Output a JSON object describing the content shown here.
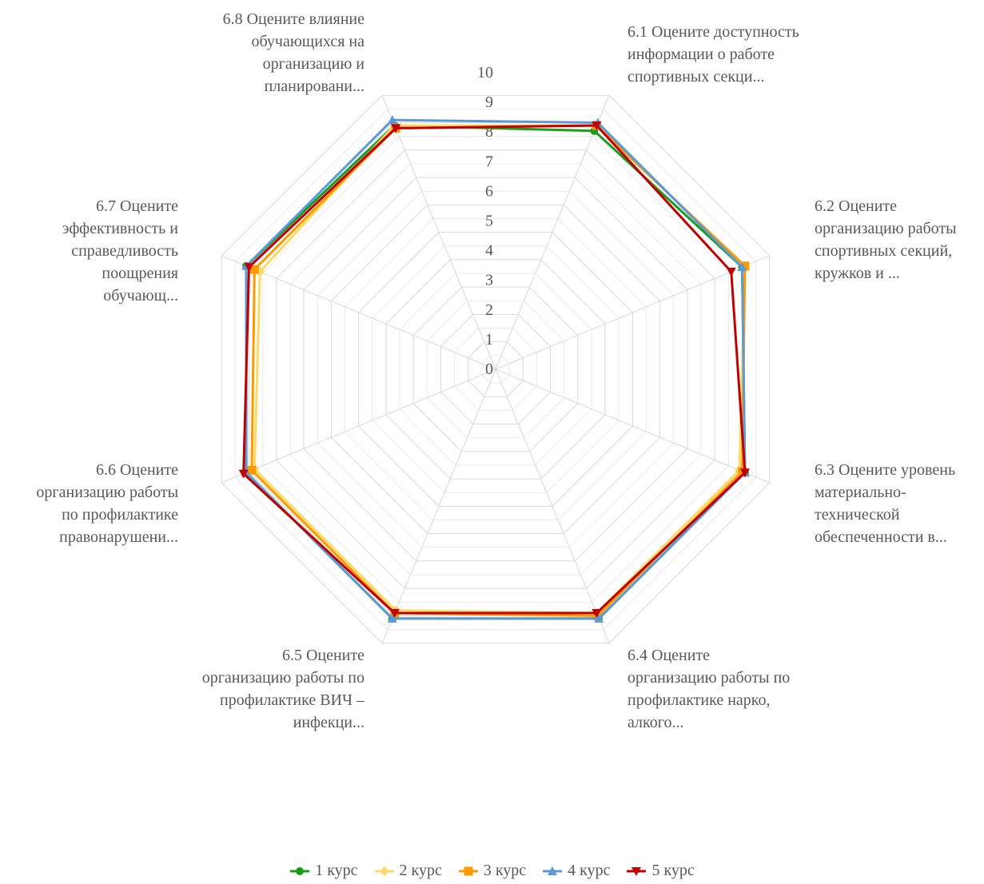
{
  "chart_data": {
    "type": "radar",
    "categories": [
      "6.1 Оцените доступность информации о работе спортивных секци...",
      "6.2 Оцените организацию работы спортивных секций, кружков и ...",
      "6.3 Оцените уровень материально-технической обеспеченности в...",
      "6.4 Оцените организацию работы по профилактике нарко, алкого...",
      "6.5 Оцените организацию работы по профилактике ВИЧ – инфекци...",
      "6.6 Оцените организацию работы по профилактике правонарушени...",
      "6.7 Оцените эффективность и справедливость поощрения обучающ...",
      "6.8 Оцените влияние обучающихся на организацию и планировани..."
    ],
    "category_lines": [
      [
        "6.1 Оцените доступность",
        "информации о работе",
        "спортивных секци..."
      ],
      [
        "6.2 Оцените",
        "организацию работы",
        "спортивных секций,",
        "кружков и ..."
      ],
      [
        "6.3 Оцените уровень",
        "материально-",
        "технической",
        "обеспеченности в..."
      ],
      [
        "6.4 Оцените",
        "организацию работы по",
        "профилактике нарко,",
        "алкого..."
      ],
      [
        "6.5 Оцените",
        "организацию работы по",
        "профилактике ВИЧ –",
        "инфекци..."
      ],
      [
        "6.6 Оцените",
        "организацию работы",
        "по профилактике",
        "правонарушени..."
      ],
      [
        "6.7 Оцените",
        "эффективность и",
        "справедливость",
        "поощрения",
        "обучающ..."
      ],
      [
        "6.8 Оцените влияние",
        "обучающихся на",
        "организацию и",
        "планировани..."
      ]
    ],
    "r_ticks": [
      "0",
      "1",
      "2",
      "3",
      "4",
      "5",
      "6",
      "7",
      "8",
      "9",
      "10"
    ],
    "rlim": [
      0,
      10
    ],
    "grid": true,
    "legend_position": "bottom",
    "series": [
      {
        "name": "1 курс",
        "color": "#1a9c1a",
        "marker": "circle",
        "values": [
          8.7,
          9.0,
          9.1,
          9.1,
          9.1,
          9.1,
          9.1,
          8.9
        ]
      },
      {
        "name": "2 курс",
        "color": "#ffd966",
        "marker": "diamond",
        "values": [
          8.9,
          9.1,
          8.9,
          8.9,
          8.8,
          8.8,
          8.6,
          8.9
        ]
      },
      {
        "name": "3 курс",
        "color": "#ff9900",
        "marker": "square",
        "values": [
          8.9,
          9.1,
          9.0,
          9.0,
          8.9,
          8.9,
          8.8,
          8.8
        ]
      },
      {
        "name": "4 курс",
        "color": "#5b9bd5",
        "marker": "triangle",
        "values": [
          9.0,
          9.0,
          9.1,
          9.1,
          9.1,
          9.1,
          9.1,
          9.1
        ]
      },
      {
        "name": "5 курс",
        "color": "#c00000",
        "marker": "triangle-down",
        "values": [
          8.9,
          8.6,
          9.1,
          8.9,
          8.9,
          9.2,
          9.0,
          8.8
        ]
      }
    ]
  }
}
